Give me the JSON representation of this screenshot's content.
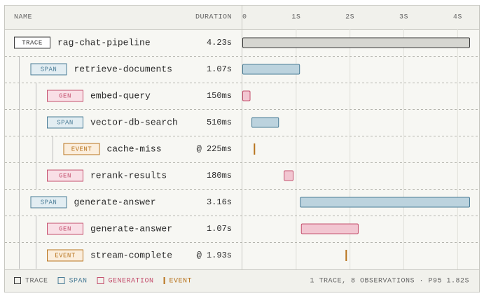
{
  "columns": {
    "name": "NAME",
    "duration": "DURATION"
  },
  "timeline": {
    "xlim": [
      0,
      4.23
    ],
    "xticks": [
      {
        "value": 0,
        "label": "0"
      },
      {
        "value": 1,
        "label": "1S"
      },
      {
        "value": 2,
        "label": "2S"
      },
      {
        "value": 3,
        "label": "3S"
      },
      {
        "value": 4,
        "label": "4S"
      }
    ]
  },
  "trace": {
    "badge": "TRACE",
    "name": "rag-chat-pipeline",
    "start": 0,
    "duration": {
      "value": 4.23,
      "label": "4.23s"
    },
    "color": "#3a3a3a",
    "badge_fill": "#ffffff",
    "fill": "#d6d6d1",
    "children": [
      {
        "badge": "SPAN",
        "name": "retrieve-documents",
        "start": 0,
        "duration": {
          "value": 1.07,
          "label": "1.07s"
        },
        "color": "#4a7c96",
        "badge_fill": "#e2edf2",
        "fill": "#bcd3de",
        "children": [
          {
            "badge": "GEN",
            "name": "embed-query",
            "start": 0,
            "duration": {
              "value": 0.15,
              "label": "150ms"
            },
            "color": "#c4506e",
            "badge_fill": "#f9dfe6",
            "fill": "#f2c6d1"
          },
          {
            "badge": "SPAN",
            "name": "vector-db-search",
            "start": 0.17,
            "duration": {
              "value": 0.51,
              "label": "510ms"
            },
            "color": "#4a7c96",
            "badge_fill": "#e2edf2",
            "fill": "#bcd3de",
            "children": [
              {
                "badge": "EVENT",
                "name": "cache-miss",
                "at": {
                  "value": 0.225,
                  "label": "@ 225ms"
                },
                "color": "#b8741e",
                "badge_fill": "#fbeedd"
              }
            ]
          },
          {
            "badge": "GEN",
            "name": "rerank-results",
            "start": 0.77,
            "duration": {
              "value": 0.18,
              "label": "180ms"
            },
            "color": "#c4506e",
            "badge_fill": "#f9dfe6",
            "fill": "#f2c6d1"
          }
        ]
      },
      {
        "badge": "SPAN",
        "name": "generate-answer",
        "start": 1.07,
        "duration": {
          "value": 3.16,
          "label": "3.16s"
        },
        "color": "#4a7c96",
        "badge_fill": "#e2edf2",
        "fill": "#bcd3de",
        "children": [
          {
            "badge": "GEN",
            "name": "generate-answer",
            "start": 1.09,
            "duration": {
              "value": 1.07,
              "label": "1.07s"
            },
            "color": "#c4506e",
            "badge_fill": "#f9dfe6",
            "fill": "#f2c6d1"
          },
          {
            "badge": "EVENT",
            "name": "stream-complete",
            "at": {
              "value": 1.93,
              "label": "@ 1.93s"
            },
            "color": "#b8741e",
            "badge_fill": "#fbeedd"
          }
        ]
      }
    ]
  },
  "legend": [
    {
      "label": "TRACE",
      "color": "#3a3a3a",
      "shape": "square"
    },
    {
      "label": "SPAN",
      "color": "#4a7c96",
      "shape": "square"
    },
    {
      "label": "GENERATION",
      "color": "#c4506e",
      "shape": "square"
    },
    {
      "label": "EVENT",
      "color": "#b8741e",
      "shape": "line"
    }
  ],
  "summary": "1 TRACE, 8 OBSERVATIONS · P95 1.82S"
}
